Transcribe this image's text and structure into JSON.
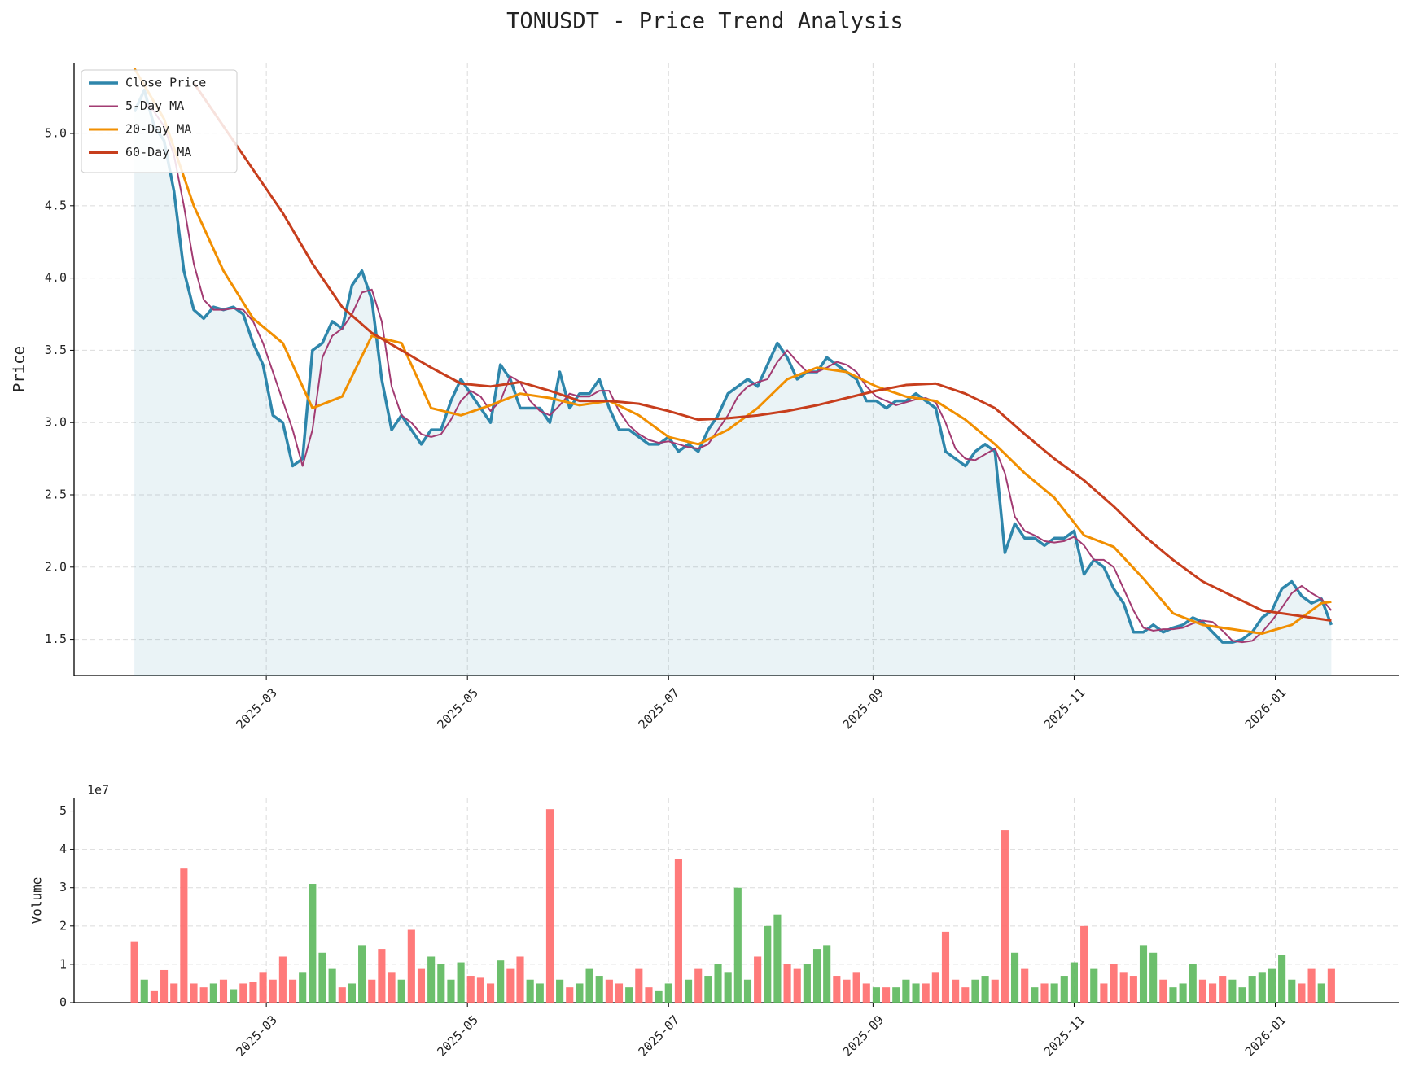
{
  "chart_data": [
    {
      "type": "line",
      "title": "TONUSDT - Price Trend Analysis",
      "ylabel": "Price",
      "xlim": [
        -18.3,
        383.4
      ],
      "xticks": [
        {
          "value": 40,
          "label": "2025-03"
        },
        {
          "value": 101,
          "label": "2025-05"
        },
        {
          "value": 162,
          "label": "2025-07"
        },
        {
          "value": 224,
          "label": "2025-09"
        },
        {
          "value": 285,
          "label": "2025-11"
        },
        {
          "value": 346,
          "label": "2026-01"
        }
      ],
      "ylim": [
        1.25,
        5.49
      ],
      "yticks": [
        1.5,
        {
          "value": 2,
          "label": "2.0"
        },
        2.5,
        {
          "value": 3,
          "label": "3.0"
        },
        3.5,
        {
          "value": 4,
          "label": "4.0"
        },
        4.5,
        {
          "value": 5,
          "label": "5.0"
        }
      ],
      "grid": true,
      "legend": "upper left",
      "fill": true,
      "x": [
        0,
        3,
        6,
        9,
        12,
        15,
        18,
        21,
        24,
        27,
        30,
        33,
        36,
        39,
        42,
        45,
        48,
        51,
        54,
        57,
        60,
        63,
        66,
        69,
        72,
        75,
        78,
        81,
        84,
        87,
        90,
        93,
        96,
        99,
        102,
        105,
        108,
        111,
        114,
        117,
        120,
        123,
        126,
        129,
        132,
        135,
        138,
        141,
        144,
        147,
        150,
        153,
        156,
        159,
        162,
        165,
        168,
        171,
        174,
        177,
        180,
        183,
        186,
        189,
        192,
        195,
        198,
        201,
        204,
        207,
        210,
        213,
        216,
        219,
        222,
        225,
        228,
        231,
        234,
        237,
        240,
        243,
        246,
        249,
        252,
        255,
        258,
        261,
        264,
        267,
        270,
        273,
        276,
        279,
        282,
        285,
        288,
        291,
        294,
        297,
        300,
        303,
        306,
        309,
        312,
        315,
        318,
        321,
        324,
        327,
        330,
        333,
        336,
        339,
        342,
        345,
        348,
        351,
        354,
        357,
        360,
        363
      ],
      "series": [
        {
          "name": "Close Price",
          "color": "#2e86ab",
          "linewidth": 3.5,
          "values": [
            5.15,
            5.3,
            5.05,
            4.95,
            4.6,
            4.05,
            3.78,
            3.72,
            3.8,
            3.78,
            3.8,
            3.75,
            3.55,
            3.4,
            3.05,
            3.0,
            2.7,
            2.75,
            3.5,
            3.55,
            3.7,
            3.65,
            3.95,
            4.05,
            3.85,
            3.3,
            2.95,
            3.05,
            2.95,
            2.85,
            2.95,
            2.95,
            3.15,
            3.3,
            3.2,
            3.1,
            3.0,
            3.4,
            3.3,
            3.1,
            3.1,
            3.1,
            3.0,
            3.35,
            3.1,
            3.2,
            3.2,
            3.3,
            3.1,
            2.95,
            2.95,
            2.9,
            2.85,
            2.85,
            2.9,
            2.8,
            2.85,
            2.8,
            2.95,
            3.05,
            3.2,
            3.25,
            3.3,
            3.25,
            3.4,
            3.55,
            3.45,
            3.3,
            3.35,
            3.35,
            3.45,
            3.4,
            3.35,
            3.3,
            3.15,
            3.15,
            3.1,
            3.15,
            3.15,
            3.2,
            3.15,
            3.1,
            2.8,
            2.75,
            2.7,
            2.8,
            2.85,
            2.8,
            2.1,
            2.3,
            2.2,
            2.2,
            2.15,
            2.2,
            2.2,
            2.25,
            1.95,
            2.05,
            2.0,
            1.85,
            1.75,
            1.55,
            1.55,
            1.6,
            1.55,
            1.58,
            1.6,
            1.65,
            1.62,
            1.55,
            1.48,
            1.48,
            1.5,
            1.55,
            1.65,
            1.7,
            1.85,
            1.9,
            1.8,
            1.75,
            1.78,
            1.6
          ]
        },
        {
          "name": "5-Day MA",
          "color": "#a23b72",
          "linewidth": 2,
          "values": [
            null,
            5.22,
            5.15,
            5.05,
            4.85,
            4.5,
            4.1,
            3.85,
            3.78,
            3.78,
            3.79,
            3.78,
            3.7,
            3.55,
            3.35,
            3.15,
            2.95,
            2.7,
            2.95,
            3.45,
            3.6,
            3.65,
            3.75,
            3.9,
            3.92,
            3.7,
            3.25,
            3.05,
            3.0,
            2.92,
            2.9,
            2.92,
            3.02,
            3.15,
            3.22,
            3.18,
            3.08,
            3.15,
            3.32,
            3.28,
            3.15,
            3.08,
            3.05,
            3.12,
            3.2,
            3.18,
            3.18,
            3.22,
            3.22,
            3.08,
            2.98,
            2.92,
            2.88,
            2.86,
            2.87,
            2.85,
            2.83,
            2.82,
            2.85,
            2.95,
            3.05,
            3.18,
            3.25,
            3.28,
            3.3,
            3.42,
            3.5,
            3.42,
            3.35,
            3.35,
            3.38,
            3.42,
            3.4,
            3.35,
            3.25,
            3.18,
            3.15,
            3.12,
            3.14,
            3.16,
            3.17,
            3.14,
            3.0,
            2.82,
            2.75,
            2.74,
            2.78,
            2.82,
            2.65,
            2.35,
            2.25,
            2.22,
            2.18,
            2.17,
            2.18,
            2.21,
            2.15,
            2.05,
            2.05,
            2.0,
            1.85,
            1.7,
            1.58,
            1.56,
            1.57,
            1.57,
            1.58,
            1.61,
            1.63,
            1.62,
            1.56,
            1.49,
            1.48,
            1.49,
            1.55,
            1.63,
            1.72,
            1.82,
            1.87,
            1.82,
            1.78,
            1.7
          ]
        },
        {
          "name": "20-Day MA",
          "color": "#f18f01",
          "linewidth": 3,
          "x": [
            0,
            9,
            18,
            27,
            36,
            45,
            54,
            63,
            72,
            81,
            90,
            99,
            108,
            117,
            126,
            135,
            144,
            153,
            162,
            171,
            180,
            189,
            198,
            207,
            216,
            225,
            234,
            243,
            252,
            261,
            270,
            279,
            288,
            297,
            306,
            315,
            324,
            333,
            342,
            351,
            360,
            363
          ],
          "values": [
            5.45,
            5.1,
            4.5,
            4.05,
            3.72,
            3.55,
            3.1,
            3.18,
            3.6,
            3.55,
            3.1,
            3.05,
            3.12,
            3.2,
            3.17,
            3.12,
            3.15,
            3.05,
            2.9,
            2.85,
            2.95,
            3.1,
            3.3,
            3.38,
            3.35,
            3.25,
            3.18,
            3.15,
            3.02,
            2.85,
            2.65,
            2.48,
            2.22,
            2.14,
            1.92,
            1.68,
            1.6,
            1.57,
            1.54,
            1.6,
            1.75,
            1.76
          ]
        },
        {
          "name": "60-Day MA",
          "color": "#c73e1d",
          "linewidth": 3,
          "x": [
            18,
            27,
            36,
            45,
            54,
            63,
            72,
            81,
            90,
            99,
            108,
            117,
            126,
            135,
            144,
            153,
            162,
            171,
            180,
            189,
            198,
            207,
            216,
            225,
            234,
            243,
            252,
            261,
            270,
            279,
            288,
            297,
            306,
            315,
            324,
            333,
            342,
            351,
            360,
            363
          ],
          "values": [
            5.35,
            5.05,
            4.75,
            4.45,
            4.1,
            3.8,
            3.62,
            3.5,
            3.38,
            3.27,
            3.25,
            3.28,
            3.22,
            3.15,
            3.15,
            3.13,
            3.08,
            3.02,
            3.03,
            3.05,
            3.08,
            3.12,
            3.17,
            3.22,
            3.26,
            3.27,
            3.2,
            3.1,
            2.92,
            2.75,
            2.6,
            2.42,
            2.22,
            2.05,
            1.9,
            1.8,
            1.7,
            1.67,
            1.64,
            1.63
          ]
        }
      ]
    },
    {
      "type": "bar",
      "ylabel": "Volume",
      "offset_label": "1e7",
      "xlim": [
        -18.3,
        383.4
      ],
      "xticks": [
        {
          "value": 40,
          "label": "2025-03"
        },
        {
          "value": 101,
          "label": "2025-05"
        },
        {
          "value": 162,
          "label": "2025-07"
        },
        {
          "value": 224,
          "label": "2025-09"
        },
        {
          "value": 285,
          "label": "2025-11"
        },
        {
          "value": 346,
          "label": "2026-01"
        }
      ],
      "ylim": [
        0,
        53300000.0
      ],
      "yticks": [
        0,
        {
          "value": 10000000.0,
          "label": "1"
        },
        {
          "value": 20000000.0,
          "label": "2"
        },
        {
          "value": 30000000.0,
          "label": "3"
        },
        {
          "value": 40000000.0,
          "label": "4"
        },
        {
          "value": 50000000.0,
          "label": "5"
        }
      ],
      "grid": true,
      "up_color": "#5cb85c",
      "down_color": "#ff6b6b",
      "x": [
        0,
        3,
        6,
        9,
        12,
        15,
        18,
        21,
        24,
        27,
        30,
        33,
        36,
        39,
        42,
        45,
        48,
        51,
        54,
        57,
        60,
        63,
        66,
        69,
        72,
        75,
        78,
        81,
        84,
        87,
        90,
        93,
        96,
        99,
        102,
        105,
        108,
        111,
        114,
        117,
        120,
        123,
        126,
        129,
        132,
        135,
        138,
        141,
        144,
        147,
        150,
        153,
        156,
        159,
        162,
        165,
        168,
        171,
        174,
        177,
        180,
        183,
        186,
        189,
        192,
        195,
        198,
        201,
        204,
        207,
        210,
        213,
        216,
        219,
        222,
        225,
        228,
        231,
        234,
        237,
        240,
        243,
        246,
        249,
        252,
        255,
        258,
        261,
        264,
        267,
        270,
        273,
        276,
        279,
        282,
        285,
        288,
        291,
        294,
        297,
        300,
        303,
        306,
        309,
        312,
        315,
        318,
        321,
        324,
        327,
        330,
        333,
        336,
        339,
        342,
        345,
        348,
        351,
        354,
        357,
        360,
        363
      ],
      "values": [
        16000000.0,
        6000000.0,
        3000000.0,
        8500000.0,
        5000000.0,
        35000000.0,
        5000000.0,
        4000000.0,
        5000000.0,
        6000000.0,
        3500000.0,
        5000000.0,
        5500000.0,
        8000000.0,
        6000000.0,
        12000000.0,
        6000000.0,
        8000000.0,
        31000000.0,
        13000000.0,
        9000000.0,
        4000000.0,
        5000000.0,
        15000000.0,
        6000000.0,
        14000000.0,
        8000000.0,
        6000000.0,
        19000000.0,
        9000000.0,
        12000000.0,
        10000000.0,
        6000000.0,
        10500000.0,
        7000000.0,
        6500000.0,
        5000000.0,
        11000000.0,
        9000000.0,
        12000000.0,
        6000000.0,
        5000000.0,
        50500000.0,
        6000000.0,
        4000000.0,
        5000000.0,
        9000000.0,
        7000000.0,
        6000000.0,
        5000000.0,
        4000000.0,
        9000000.0,
        4000000.0,
        3000000.0,
        5000000.0,
        37500000.0,
        6000000.0,
        9000000.0,
        7000000.0,
        10000000.0,
        8000000.0,
        30000000.0,
        6000000.0,
        12000000.0,
        20000000.0,
        23000000.0,
        10000000.0,
        9000000.0,
        10000000.0,
        14000000.0,
        15000000.0,
        7000000.0,
        6000000.0,
        8000000.0,
        5000000.0,
        4000000.0,
        4000000.0,
        4000000.0,
        6000000.0,
        5000000.0,
        5000000.0,
        8000000.0,
        18500000.0,
        6000000.0,
        4000000.0,
        6000000.0,
        7000000.0,
        6000000.0,
        45000000.0,
        13000000.0,
        9000000.0,
        4000000.0,
        5000000.0,
        5000000.0,
        7000000.0,
        10500000.0,
        20000000.0,
        9000000.0,
        5000000.0,
        10000000.0,
        8000000.0,
        7000000.0,
        15000000.0,
        13000000.0,
        6000000.0,
        4000000.0,
        5000000.0,
        10000000.0,
        6000000.0,
        5000000.0,
        7000000.0,
        6000000.0,
        4000000.0,
        7000000.0,
        8000000.0,
        9000000.0,
        12500000.0,
        6000000.0,
        5000000.0,
        9000000.0,
        5000000.0,
        9000000.0
      ]
    }
  ]
}
